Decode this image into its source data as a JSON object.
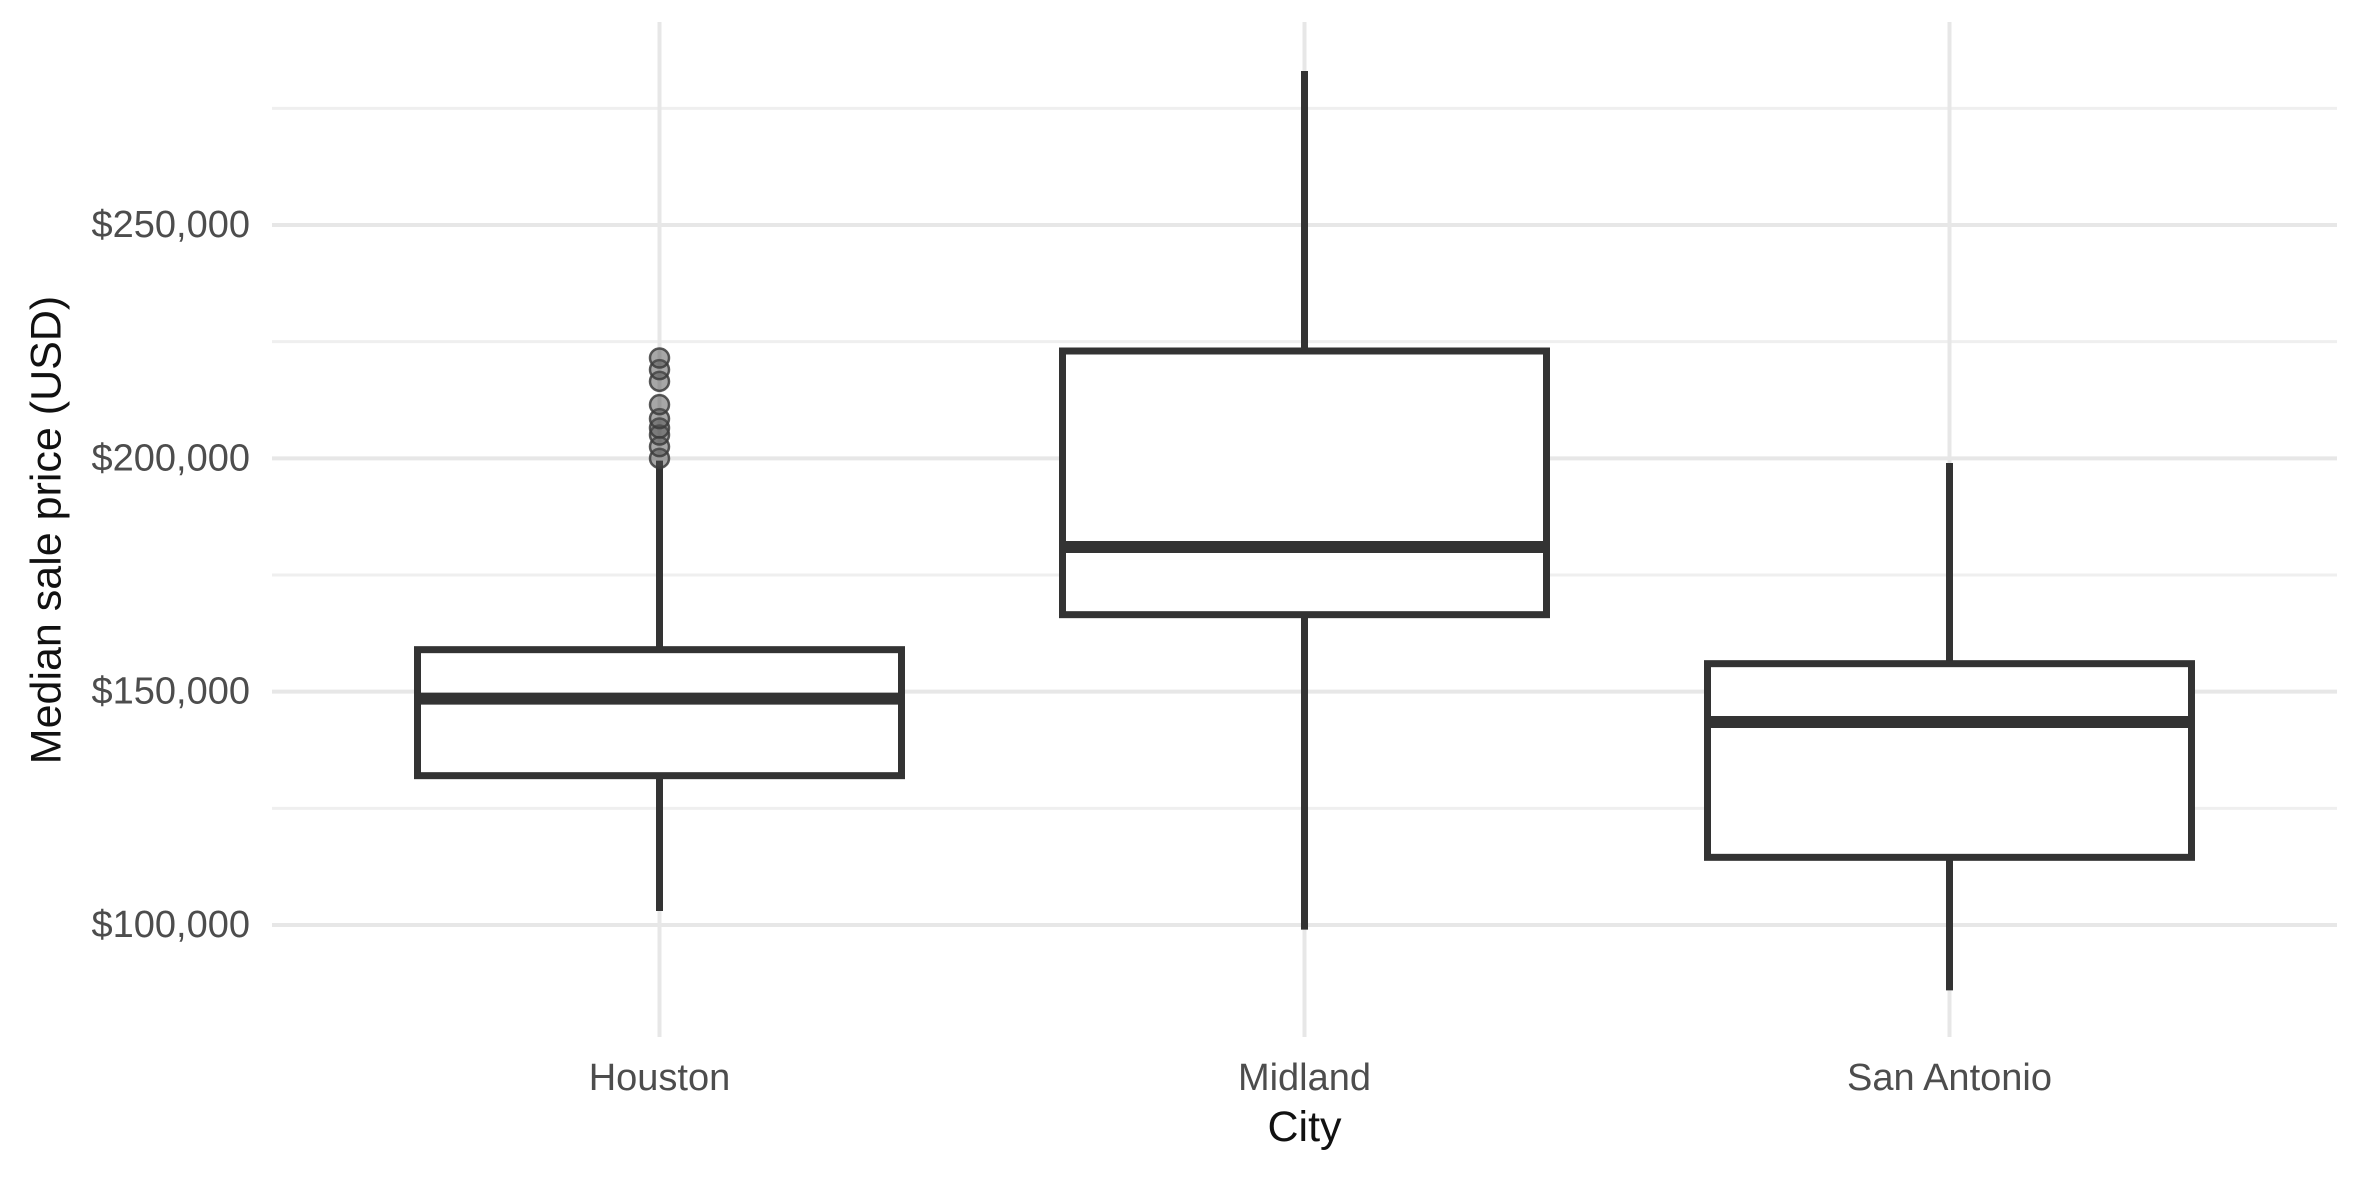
{
  "figure": {
    "x_axis_title": "City",
    "y_axis_title": "Median sale price (USD)"
  },
  "chart_data": {
    "type": "boxplot",
    "orientation": "vertical",
    "title": "",
    "xlabel": "City",
    "ylabel": "Median sale price (USD)",
    "categories": [
      "Houston",
      "Midland",
      "San Antonio"
    ],
    "series": [
      {
        "category": "Houston",
        "whisker_low": 103000,
        "q1": 132000,
        "median": 148500,
        "q3": 159000,
        "whisker_high": 199500,
        "outliers": [
          200000,
          202500,
          205000,
          206500,
          208500,
          211500,
          216500,
          219000,
          221500
        ]
      },
      {
        "category": "Midland",
        "whisker_low": 99000,
        "q1": 166500,
        "median": 181000,
        "q3": 223000,
        "whisker_high": 283000,
        "outliers": []
      },
      {
        "category": "San Antonio",
        "whisker_low": 86000,
        "q1": 114500,
        "median": 143500,
        "q3": 156000,
        "whisker_high": 199000,
        "outliers": []
      }
    ],
    "y_ticks": [
      {
        "value": 100000,
        "label": "$100,000"
      },
      {
        "value": 150000,
        "label": "$150,000"
      },
      {
        "value": 200000,
        "label": "$200,000"
      },
      {
        "value": 250000,
        "label": "$250,000"
      }
    ],
    "y_minor_ticks": [
      125000,
      175000,
      225000,
      275000
    ],
    "ylim": [
      76000,
      293500
    ],
    "grid": "horizontal major+minor, vertical at categories",
    "legend": "none"
  },
  "style": {
    "background": "#ffffff",
    "box_stroke": "#333333",
    "box_fill": "#ffffff",
    "grid_major": "#e7e7e7",
    "grid_minor": "#efefef",
    "tick_label_color": "#4d4d4d",
    "axis_title_color": "#111111",
    "outlier_fill": "#4f4f4f",
    "outlier_stroke": "#3c3c3c",
    "outlier_opacity": 0.5
  }
}
